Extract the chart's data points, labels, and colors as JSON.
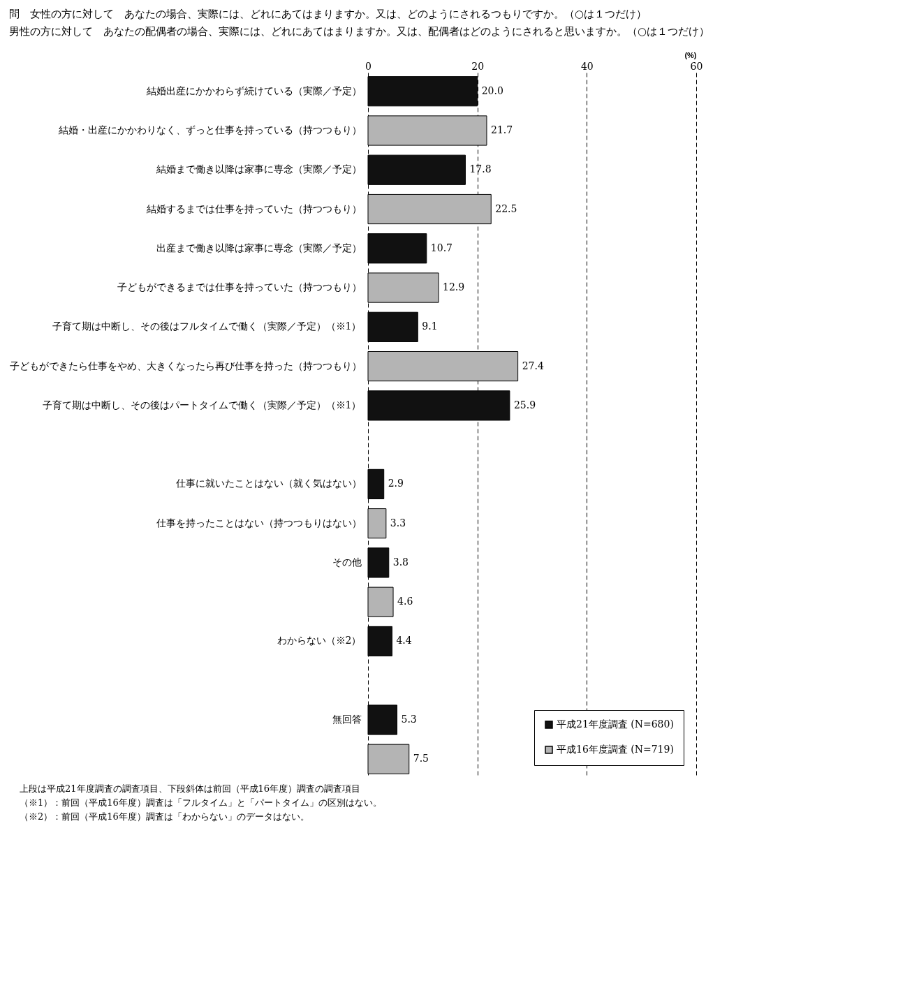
{
  "chart_data": {
    "type": "bar",
    "orientation": "horizontal",
    "title": "問　女性の方に対して　あなたの場合、実際には、どれにあてはまりますか。又は、どのようにされるつもりですか。（○は１つだけ）",
    "subtitle": "男性の方に対して　あなたの配偶者の場合、実際には、どれにあてはまりますか。又は、配偶者はどのようにされると思いますか。（○は１つだけ）",
    "xlabel": "(%)",
    "categories": [
      "結婚出産にかかわらず続けている（実際／予定）",
      "結婚・出産にかかわりなく、ずっと仕事を持っている（持つつもり）",
      "結婚まで働き以降は家事に専念（実際／予定）",
      "結婚するまでは仕事を持っていた（持つつもり）",
      "出産まで働き以降は家事に専念（実際／予定）",
      "子どもができるまでは仕事を持っていた（持つつもり）",
      "子育て期は中断し、その後はフルタイムで働く（実際／予定）（※1）",
      "子どもができたら仕事をやめ、大きくなったら再び仕事を持った（持つつもり）",
      "子育て期は中断し、その後はパートタイムで働く（実際／予定）（※1）",
      null,
      "仕事に就いたことはない（就く気はない）",
      "仕事を持ったことはない（持つつもりはない）",
      "その他",
      null,
      "わからない（※2）",
      null,
      "無回答",
      null
    ],
    "series": [
      {
        "name": "平成21年度調査 (N=680)",
        "color": "#111111",
        "values": [
          20.0,
          null,
          17.8,
          null,
          10.7,
          null,
          9.1,
          null,
          25.9,
          null,
          2.9,
          null,
          3.8,
          null,
          4.4,
          null,
          5.3,
          null
        ],
        "value_labels": [
          "20.0",
          null,
          "17.8",
          null,
          "10.7",
          null,
          "9.1",
          null,
          "25.9",
          null,
          "2.9",
          null,
          "3.8",
          null,
          "4.4",
          null,
          "5.3",
          null
        ]
      },
      {
        "name": "平成16年度調査 (N=719)",
        "color": "#b4b4b4",
        "values": [
          null,
          21.7,
          null,
          22.5,
          null,
          12.9,
          null,
          27.4,
          null,
          null,
          null,
          3.3,
          null,
          4.6,
          null,
          null,
          null,
          7.5
        ],
        "value_labels": [
          null,
          "21.7",
          null,
          "22.5",
          null,
          "12.9",
          null,
          "27.4",
          null,
          null,
          null,
          "3.3",
          null,
          "4.6",
          null,
          null,
          null,
          "7.5"
        ]
      }
    ],
    "xlim": [
      0,
      60
    ],
    "xticks": [
      0,
      20,
      40,
      60
    ],
    "grid": "x",
    "legend": "bottom right",
    "annotations": [
      "上段は平成21年度調査の調査項目、下段斜体は前回（平成16年度）調査の調査項目",
      "（※1）：前回（平成16年度）調査は「フルタイム」と「パートタイム」の区別はない。",
      "（※2）：前回（平成16年度）調査は「わからない」のデータはない。"
    ]
  }
}
